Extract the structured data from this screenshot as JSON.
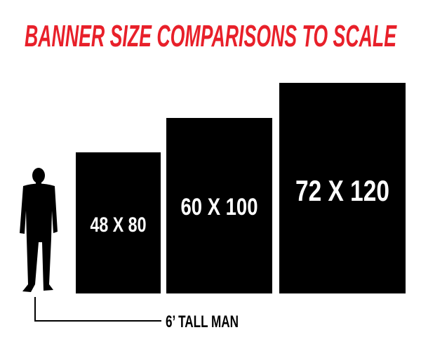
{
  "title": "BANNER SIZE COMPARISONS TO SCALE",
  "colors": {
    "title": "#e8202a",
    "banner": "#000000",
    "banner_text": "#ffffff",
    "background": "#ffffff"
  },
  "banners": [
    {
      "label": "48 X 80"
    },
    {
      "label": "60 X 100"
    },
    {
      "label": "72 X 120"
    }
  ],
  "reference": {
    "icon": "man-silhouette-icon",
    "label": "6’ TALL MAN"
  }
}
